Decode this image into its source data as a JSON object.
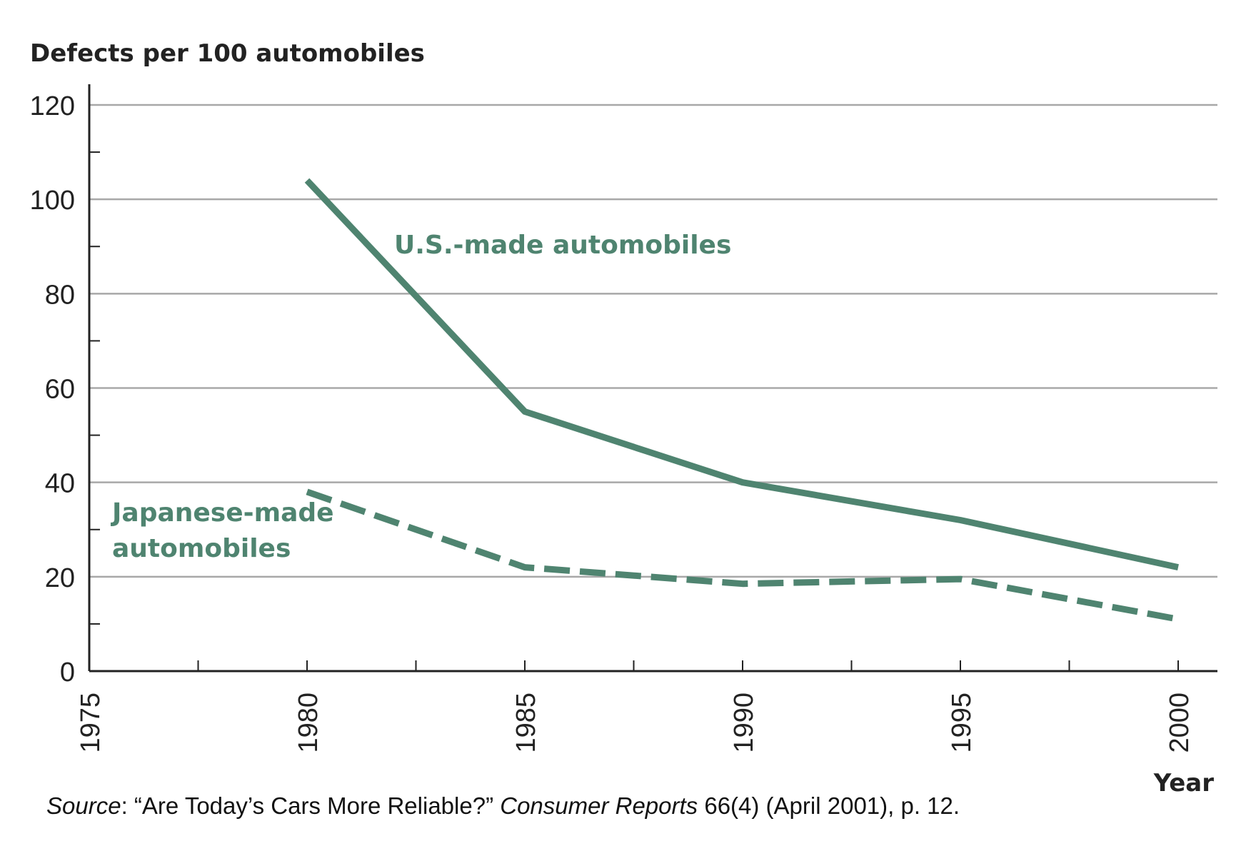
{
  "chart_data": {
    "type": "line",
    "title": "",
    "ylabel": "Defects per 100 automobiles",
    "xlabel": "Year",
    "xlim": [
      1975,
      2001
    ],
    "ylim": [
      0,
      120
    ],
    "x_ticks": [
      "1975",
      "1980",
      "1985",
      "1990",
      "1995",
      "2000"
    ],
    "y_ticks": [
      "0",
      "20",
      "40",
      "60",
      "80",
      "100",
      "120"
    ],
    "grid": "horizontal",
    "series": [
      {
        "name": "U.S.-made automobiles",
        "style": "solid",
        "color": "#4f8470",
        "x": [
          1980,
          1985,
          1990,
          1995,
          2000
        ],
        "y": [
          104,
          55,
          40,
          32,
          22
        ]
      },
      {
        "name_lines": [
          "Japanese-made",
          "automobiles"
        ],
        "style": "dashed",
        "color": "#4f8470",
        "x": [
          1980,
          1985,
          1990,
          1995,
          2000
        ],
        "y": [
          38,
          22,
          18.5,
          19.5,
          11
        ]
      }
    ],
    "source": {
      "label": "Source",
      "text1": ": “Are Today’s Cars More Reliable?” ",
      "publication": "Consumer Reports",
      "text2": " 66(4) (April 2001), p. 12."
    }
  }
}
